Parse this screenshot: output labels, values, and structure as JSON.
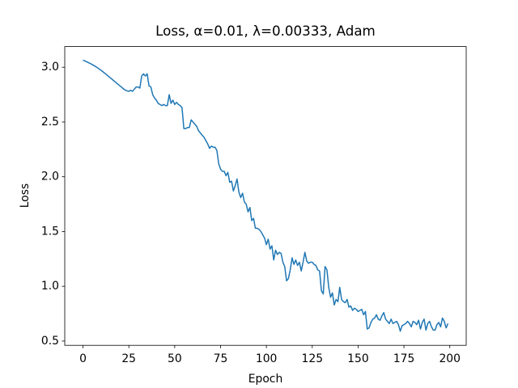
{
  "chart_data": {
    "type": "line",
    "title": "Loss, α=0.01, λ=0.00333, Adam",
    "xlabel": "Epoch",
    "ylabel": "Loss",
    "xlim": [
      -9.95,
      208.95
    ],
    "ylim": [
      0.461,
      3.189
    ],
    "xticks": [
      0,
      25,
      50,
      75,
      100,
      125,
      150,
      175,
      200
    ],
    "yticks": [
      0.5,
      {
        "value": 1,
        "label": "1.0"
      },
      1.5,
      {
        "value": 2,
        "label": "2.0"
      },
      2.5,
      {
        "value": 3,
        "label": "3.0"
      }
    ],
    "x": [
      0,
      1,
      2,
      3,
      4,
      5,
      6,
      7,
      8,
      9,
      10,
      11,
      12,
      13,
      14,
      15,
      16,
      17,
      18,
      19,
      20,
      21,
      22,
      23,
      24,
      25,
      26,
      27,
      28,
      29,
      30,
      31,
      32,
      33,
      34,
      35,
      36,
      37,
      38,
      39,
      40,
      41,
      42,
      43,
      44,
      45,
      46,
      47,
      48,
      49,
      50,
      51,
      52,
      53,
      54,
      55,
      56,
      57,
      58,
      59,
      60,
      61,
      62,
      63,
      64,
      65,
      66,
      67,
      68,
      69,
      70,
      71,
      72,
      73,
      74,
      75,
      76,
      77,
      78,
      79,
      80,
      81,
      82,
      83,
      84,
      85,
      86,
      87,
      88,
      89,
      90,
      91,
      92,
      93,
      94,
      95,
      96,
      97,
      98,
      99,
      100,
      101,
      102,
      103,
      104,
      105,
      106,
      107,
      108,
      109,
      110,
      111,
      112,
      113,
      114,
      115,
      116,
      117,
      118,
      119,
      120,
      121,
      122,
      123,
      124,
      125,
      126,
      127,
      128,
      129,
      130,
      131,
      132,
      133,
      134,
      135,
      136,
      137,
      138,
      139,
      140,
      141,
      142,
      143,
      144,
      145,
      146,
      147,
      148,
      149,
      150,
      151,
      152,
      153,
      154,
      155,
      156,
      157,
      158,
      159,
      160,
      161,
      162,
      163,
      164,
      165,
      166,
      167,
      168,
      169,
      170,
      171,
      172,
      173,
      174,
      175,
      176,
      177,
      178,
      179,
      180,
      181,
      182,
      183,
      184,
      185,
      186,
      187,
      188,
      189,
      190,
      191,
      192,
      193,
      194,
      195,
      196,
      197,
      198,
      199
    ],
    "series": [
      {
        "color": "#1f77b4",
        "values": [
          3.065,
          3.058,
          3.05,
          3.042,
          3.034,
          3.025,
          3.015,
          3.005,
          2.994,
          2.982,
          2.97,
          2.957,
          2.944,
          2.93,
          2.916,
          2.902,
          2.888,
          2.874,
          2.86,
          2.846,
          2.832,
          2.818,
          2.804,
          2.792,
          2.785,
          2.78,
          2.79,
          2.78,
          2.8,
          2.82,
          2.82,
          2.81,
          2.92,
          2.94,
          2.92,
          2.94,
          2.83,
          2.82,
          2.75,
          2.72,
          2.7,
          2.67,
          2.66,
          2.65,
          2.66,
          2.65,
          2.65,
          2.75,
          2.67,
          2.7,
          2.66,
          2.68,
          2.66,
          2.65,
          2.63,
          2.44,
          2.44,
          2.45,
          2.45,
          2.52,
          2.5,
          2.48,
          2.46,
          2.42,
          2.4,
          2.38,
          2.36,
          2.33,
          2.3,
          2.26,
          2.28,
          2.27,
          2.27,
          2.24,
          2.12,
          2.07,
          2.05,
          2.05,
          2.01,
          2.04,
          1.95,
          1.96,
          1.87,
          1.92,
          1.98,
          1.86,
          1.81,
          1.85,
          1.77,
          1.75,
          1.68,
          1.72,
          1.6,
          1.62,
          1.53,
          1.53,
          1.52,
          1.5,
          1.47,
          1.44,
          1.38,
          1.43,
          1.34,
          1.37,
          1.24,
          1.33,
          1.29,
          1.31,
          1.3,
          1.22,
          1.18,
          1.05,
          1.07,
          1.15,
          1.26,
          1.2,
          1.24,
          1.19,
          1.22,
          1.14,
          1.22,
          1.31,
          1.23,
          1.21,
          1.22,
          1.22,
          1.2,
          1.19,
          1.15,
          1.14,
          0.96,
          0.93,
          1.18,
          1.15,
          0.99,
          0.9,
          0.94,
          0.83,
          0.88,
          0.86,
          0.99,
          0.88,
          0.86,
          0.85,
          0.88,
          0.81,
          0.82,
          0.78,
          0.8,
          0.79,
          0.77,
          0.78,
          0.79,
          0.74,
          0.77,
          0.61,
          0.62,
          0.67,
          0.7,
          0.71,
          0.74,
          0.7,
          0.69,
          0.73,
          0.76,
          0.7,
          0.68,
          0.66,
          0.7,
          0.66,
          0.67,
          0.68,
          0.65,
          0.59,
          0.64,
          0.65,
          0.66,
          0.68,
          0.66,
          0.63,
          0.68,
          0.67,
          0.65,
          0.69,
          0.61,
          0.67,
          0.7,
          0.6,
          0.66,
          0.68,
          0.63,
          0.6,
          0.6,
          0.65,
          0.67,
          0.63,
          0.71,
          0.68,
          0.62,
          0.66
        ]
      }
    ]
  }
}
